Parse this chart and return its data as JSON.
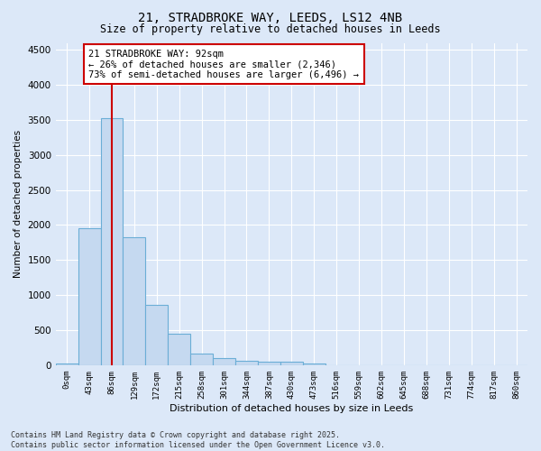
{
  "title1": "21, STRADBROKE WAY, LEEDS, LS12 4NB",
  "title2": "Size of property relative to detached houses in Leeds",
  "xlabel": "Distribution of detached houses by size in Leeds",
  "ylabel": "Number of detached properties",
  "bar_labels": [
    "0sqm",
    "43sqm",
    "86sqm",
    "129sqm",
    "172sqm",
    "215sqm",
    "258sqm",
    "301sqm",
    "344sqm",
    "387sqm",
    "430sqm",
    "473sqm",
    "516sqm",
    "559sqm",
    "602sqm",
    "645sqm",
    "688sqm",
    "731sqm",
    "774sqm",
    "817sqm",
    "860sqm"
  ],
  "bar_values": [
    30,
    1950,
    3530,
    1820,
    855,
    450,
    165,
    95,
    60,
    55,
    50,
    30,
    0,
    0,
    0,
    0,
    0,
    0,
    0,
    0,
    0
  ],
  "bar_color": "#c5d9f0",
  "bar_edge_color": "#6baed6",
  "vline_color": "#cc0000",
  "annotation_text": "21 STRADBROKE WAY: 92sqm\n← 26% of detached houses are smaller (2,346)\n73% of semi-detached houses are larger (6,496) →",
  "annotation_box_color": "#ffffff",
  "annotation_border_color": "#cc0000",
  "ylim": [
    0,
    4600
  ],
  "yticks": [
    0,
    500,
    1000,
    1500,
    2000,
    2500,
    3000,
    3500,
    4000,
    4500
  ],
  "footer": "Contains HM Land Registry data © Crown copyright and database right 2025.\nContains public sector information licensed under the Open Government Licence v3.0.",
  "bg_color": "#dce8f8",
  "plot_bg_color": "#dce8f8"
}
